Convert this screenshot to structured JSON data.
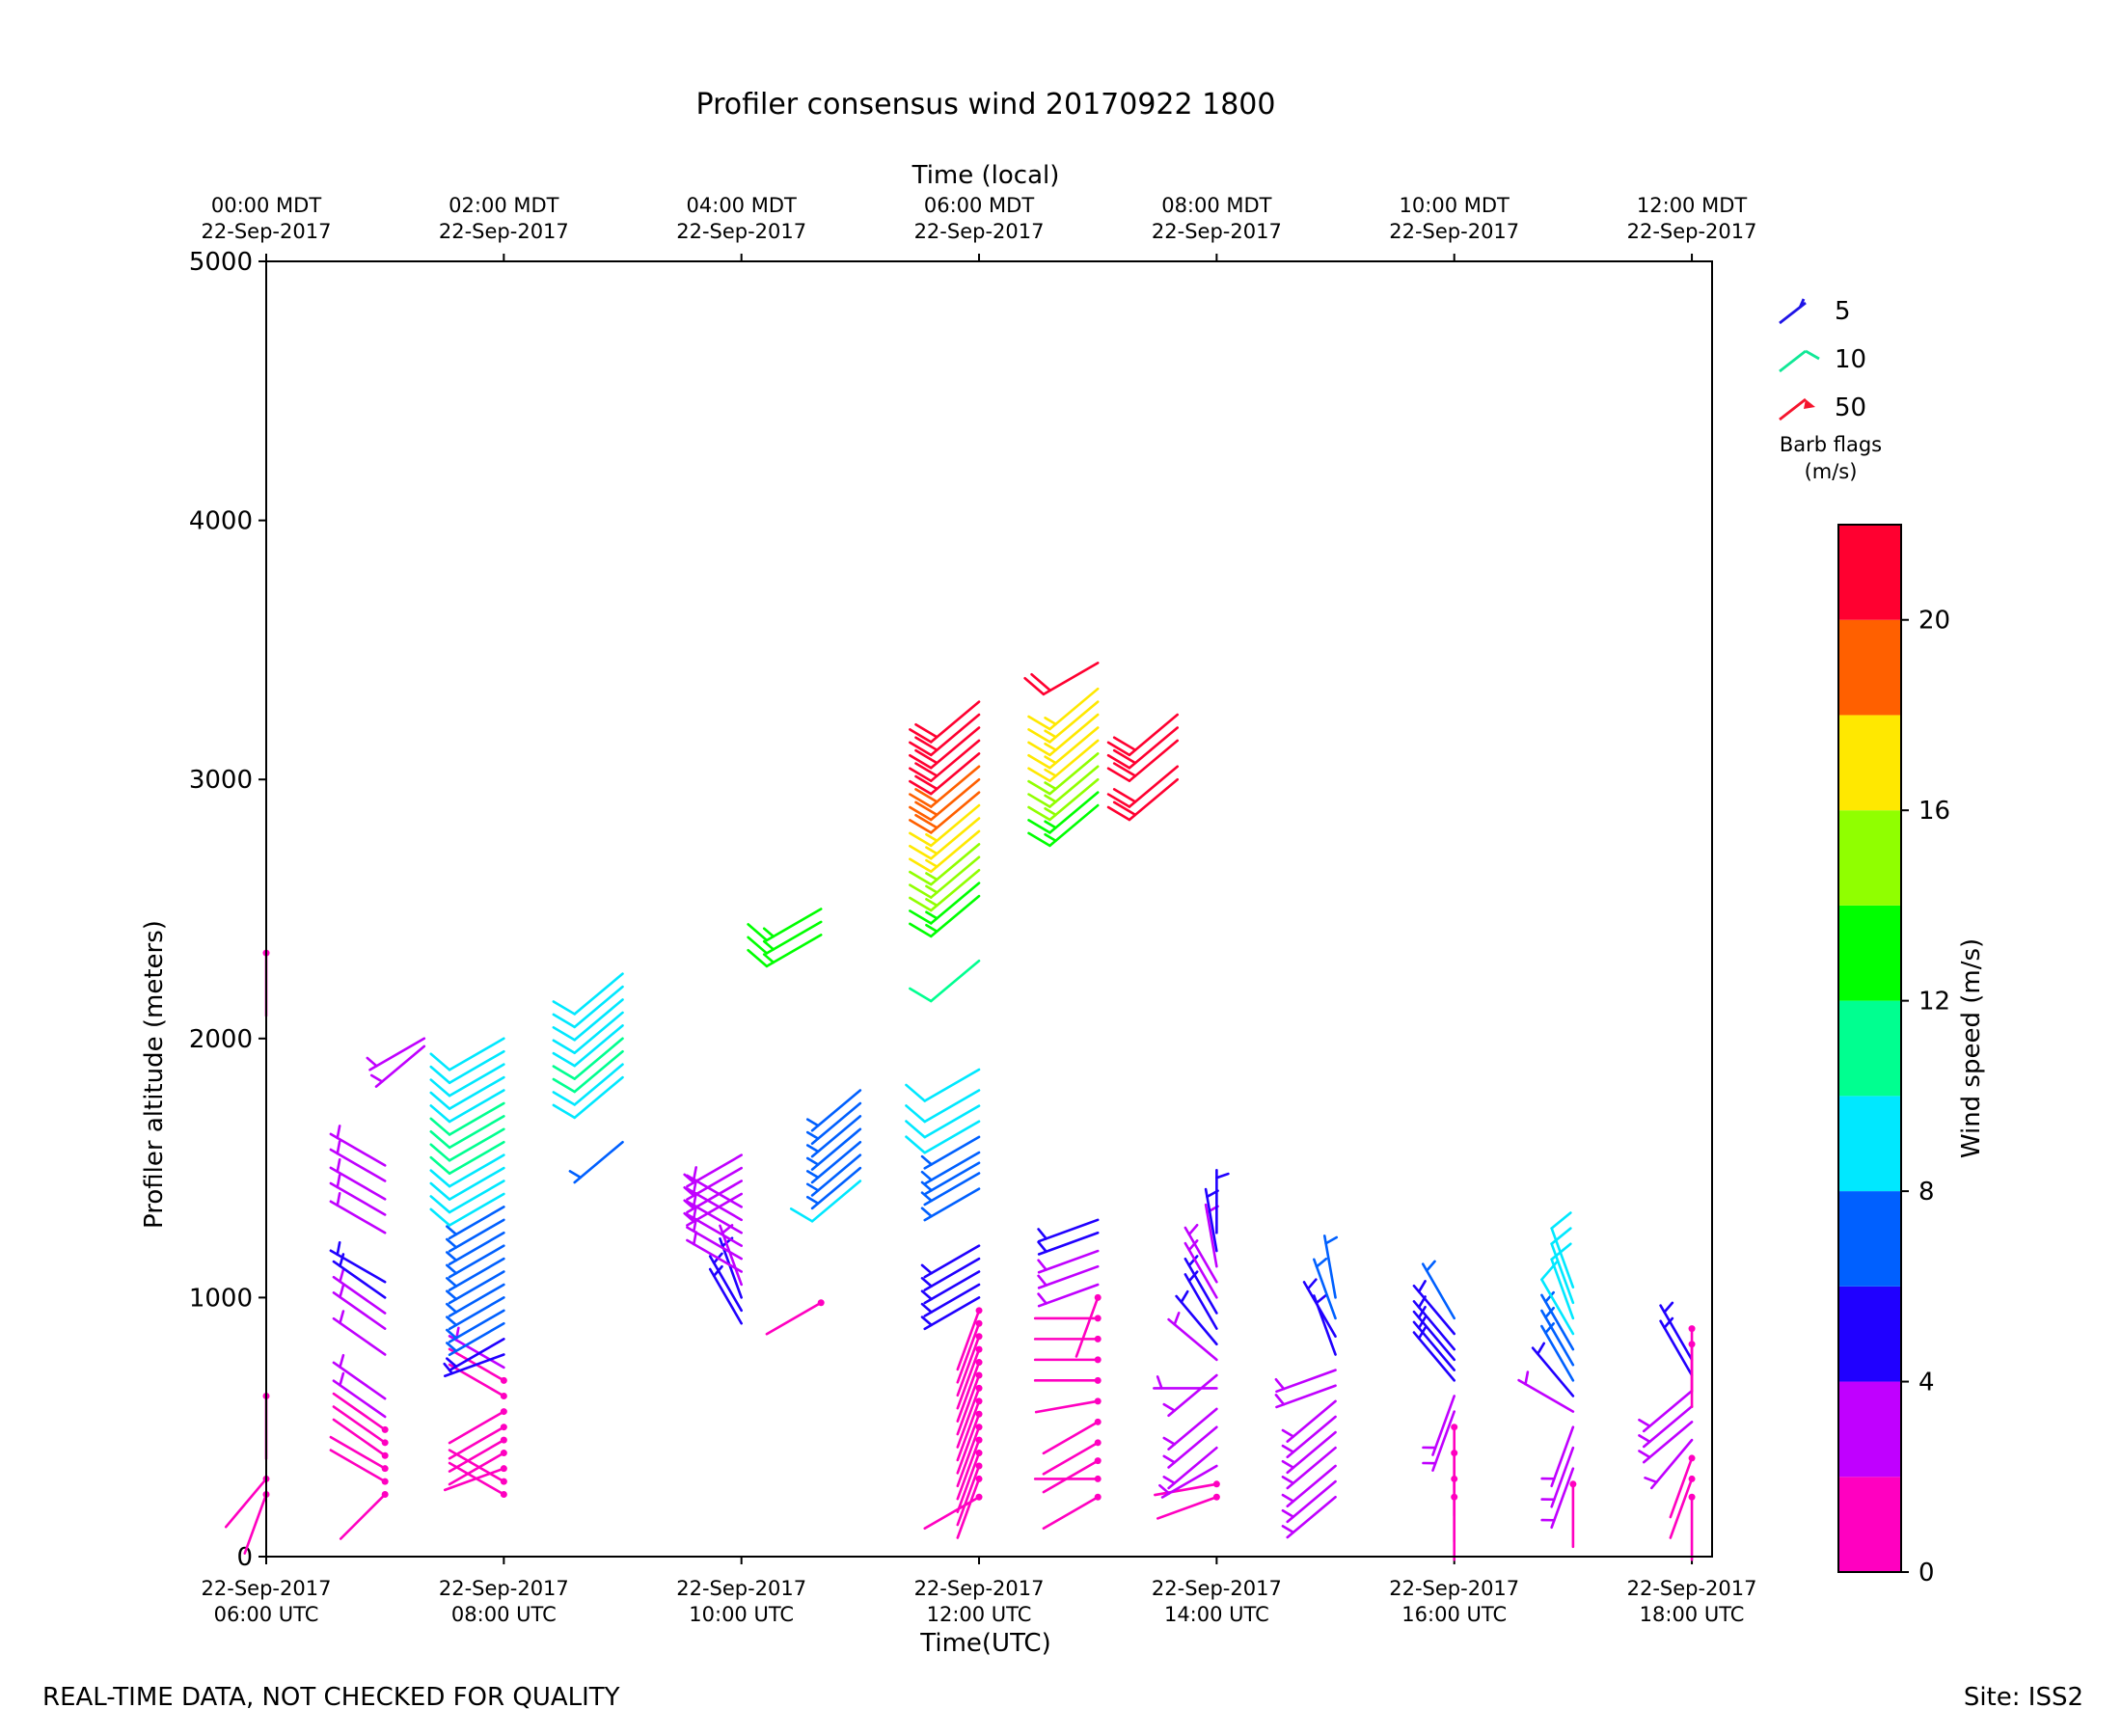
{
  "chart_data": {
    "type": "wind-barb time-height",
    "title": "Profiler consensus wind 20170922 1800",
    "xlabel": "Time(UTC)",
    "xlabel_top": "Time (local)",
    "ylabel": "Profiler altitude (meters)",
    "ylim": [
      0,
      5000
    ],
    "xlim_hours_utc": [
      6.0,
      18.17
    ],
    "y_ticks": [
      "0",
      "1000",
      "2000",
      "3000",
      "4000",
      "5000"
    ],
    "y_tick_values": [
      0,
      1000,
      2000,
      3000,
      4000,
      5000
    ],
    "x_tick_hours": [
      6,
      8,
      10,
      12,
      14,
      16,
      18
    ],
    "x_tick_labels_utc": [
      [
        "22-Sep-2017",
        "06:00 UTC"
      ],
      [
        "22-Sep-2017",
        "08:00 UTC"
      ],
      [
        "22-Sep-2017",
        "10:00 UTC"
      ],
      [
        "22-Sep-2017",
        "12:00 UTC"
      ],
      [
        "22-Sep-2017",
        "14:00 UTC"
      ],
      [
        "22-Sep-2017",
        "16:00 UTC"
      ],
      [
        "22-Sep-2017",
        "18:00 UTC"
      ]
    ],
    "x_tick_labels_local": [
      [
        "00:00 MDT",
        "22-Sep-2017"
      ],
      [
        "02:00 MDT",
        "22-Sep-2017"
      ],
      [
        "04:00 MDT",
        "22-Sep-2017"
      ],
      [
        "06:00 MDT",
        "22-Sep-2017"
      ],
      [
        "08:00 MDT",
        "22-Sep-2017"
      ],
      [
        "10:00 MDT",
        "22-Sep-2017"
      ],
      [
        "12:00 MDT",
        "22-Sep-2017"
      ]
    ],
    "barb_legend": {
      "title": "Barb flags",
      "unit": "(m/s)",
      "entries": [
        {
          "label": "5",
          "color": "#1f14e6"
        },
        {
          "label": "10",
          "color": "#10e896"
        },
        {
          "label": "50",
          "color": "#f5142d"
        }
      ]
    },
    "colorbar": {
      "label": "Wind speed (m/s)",
      "range": [
        0,
        22
      ],
      "ticks": [
        "0",
        "4",
        "8",
        "12",
        "16",
        "20"
      ],
      "tick_values": [
        0,
        4,
        8,
        12,
        16,
        20
      ],
      "bins": [
        {
          "from": 0,
          "to": 2,
          "color": "#ff00c0"
        },
        {
          "from": 2,
          "to": 4,
          "color": "#c000ff"
        },
        {
          "from": 4,
          "to": 6,
          "color": "#2000ff"
        },
        {
          "from": 6,
          "to": 8,
          "color": "#0060ff"
        },
        {
          "from": 8,
          "to": 10,
          "color": "#00e8ff"
        },
        {
          "from": 10,
          "to": 12,
          "color": "#00ff90"
        },
        {
          "from": 12,
          "to": 14,
          "color": "#00ff00"
        },
        {
          "from": 14,
          "to": 16,
          "color": "#90ff00"
        },
        {
          "from": 16,
          "to": 18,
          "color": "#ffe800"
        },
        {
          "from": 18,
          "to": 20,
          "color": "#ff6000"
        },
        {
          "from": 20,
          "to": 22,
          "color": "#ff0030"
        }
      ]
    },
    "series": [
      {
        "name": "06:00 UTC",
        "time": 6.0,
        "altitudes": [
          240,
          300,
          620,
          2330
        ],
        "speeds": [
          1,
          1,
          1,
          1
        ],
        "dirs": [
          200,
          220,
          180,
          180
        ]
      },
      {
        "name": "07:00 UTC",
        "time": 7.0,
        "altitudes": [
          240,
          290,
          340,
          390,
          440,
          490,
          540,
          610,
          780,
          880,
          940,
          1000,
          1060,
          1250,
          1320,
          1380,
          1450,
          1510
        ],
        "speeds": [
          1,
          1,
          1,
          1,
          1,
          1,
          3,
          3,
          3,
          3,
          3,
          5,
          5,
          3,
          3,
          3,
          3,
          3
        ],
        "dirs": [
          225,
          300,
          300,
          305,
          305,
          305,
          305,
          305,
          305,
          305,
          305,
          305,
          300,
          300,
          300,
          300,
          300,
          300
        ]
      },
      {
        "name": "07:20 UTC",
        "time": 7.33,
        "altitudes": [
          1970,
          2000
        ],
        "speeds": [
          3,
          3
        ],
        "dirs": [
          230,
          240
        ]
      },
      {
        "name": "08:00 UTC",
        "time": 8.0,
        "altitudes": [
          240,
          290,
          340,
          400,
          450,
          500,
          560,
          620,
          680,
          730,
          780,
          840,
          900,
          950,
          1000,
          1050,
          1100,
          1150,
          1200,
          1250,
          1300,
          1350,
          1400,
          1450,
          1500,
          1550,
          1600,
          1650,
          1700,
          1750,
          1800,
          1850,
          1900,
          1950,
          2000
        ],
        "speeds": [
          1,
          1,
          1,
          1,
          1,
          1,
          1,
          1,
          1,
          3,
          5,
          5,
          7,
          7,
          7,
          7,
          7,
          7,
          7,
          7,
          7,
          7,
          9,
          9,
          9,
          9,
          11,
          11,
          11,
          11,
          9,
          9,
          9,
          9,
          9
        ],
        "dirs": [
          300,
          300,
          250,
          240,
          240,
          240,
          240,
          300,
          300,
          300,
          250,
          240,
          240,
          240,
          240,
          240,
          240,
          240,
          240,
          240,
          240,
          240,
          240,
          240,
          240,
          240,
          240,
          240,
          240,
          240,
          240,
          240,
          240,
          240,
          240
        ]
      },
      {
        "name": "09:00 UTC",
        "time": 9.0,
        "altitudes": [
          1600,
          1850,
          1900,
          1950,
          2000,
          2050,
          2100,
          2150,
          2200,
          2250
        ],
        "speeds": [
          7,
          9,
          9,
          11,
          11,
          9,
          9,
          9,
          9,
          9
        ],
        "dirs": [
          230,
          230,
          230,
          230,
          230,
          230,
          230,
          230,
          230,
          230
        ]
      },
      {
        "name": "10:00 UTC",
        "time": 10.0,
        "altitudes": [
          900,
          950,
          1000,
          1050,
          1100,
          1150,
          1200,
          1250,
          1300,
          1350,
          1400,
          1450,
          1500,
          1550
        ],
        "speeds": [
          5,
          5,
          5,
          3,
          3,
          3,
          3,
          3,
          3,
          3,
          3,
          3,
          3,
          3
        ],
        "dirs": [
          330,
          330,
          340,
          340,
          300,
          300,
          300,
          300,
          300,
          300,
          240,
          240,
          240,
          240
        ]
      },
      {
        "name": "10:40 UTC",
        "time": 10.67,
        "altitudes": [
          980,
          2400,
          2450,
          2500
        ],
        "speeds": [
          1,
          13,
          13,
          13
        ],
        "dirs": [
          240,
          240,
          240,
          240
        ]
      },
      {
        "name": "11:00 UTC",
        "time": 11.0,
        "altitudes": [
          1450,
          1500,
          1550,
          1600,
          1650,
          1700,
          1750,
          1800
        ],
        "speeds": [
          9,
          7,
          7,
          7,
          7,
          7,
          7,
          7
        ],
        "dirs": [
          230,
          230,
          230,
          230,
          230,
          230,
          230,
          230
        ]
      },
      {
        "name": "12:00 UTC",
        "time": 12.0,
        "altitudes": [
          230,
          300,
          350,
          400,
          450,
          500,
          550,
          600,
          650,
          700,
          750,
          800,
          850,
          900,
          950,
          1000,
          1050,
          1100,
          1150,
          1200,
          1420,
          1480,
          1520,
          1560,
          1620,
          1680,
          1740,
          1800,
          1880,
          2300,
          2550,
          2600,
          2650,
          2700,
          2750,
          2800,
          2850,
          2900,
          2950,
          3000,
          3050,
          3100,
          3150,
          3200,
          3250,
          3300
        ],
        "speeds": [
          1,
          1,
          1,
          1,
          1,
          1,
          1,
          1,
          1,
          1,
          1,
          1,
          1,
          1,
          1,
          5,
          5,
          5,
          5,
          5,
          7,
          7,
          7,
          7,
          7,
          9,
          9,
          9,
          9,
          11,
          13,
          13,
          15,
          15,
          15,
          17,
          17,
          17,
          19,
          19,
          19,
          21,
          21,
          21,
          21,
          21
        ],
        "dirs": [
          240,
          200,
          200,
          200,
          200,
          200,
          200,
          200,
          200,
          200,
          200,
          200,
          200,
          200,
          200,
          240,
          240,
          240,
          240,
          240,
          240,
          240,
          240,
          240,
          240,
          240,
          240,
          240,
          240,
          230,
          230,
          230,
          230,
          230,
          230,
          230,
          230,
          230,
          230,
          230,
          230,
          230,
          230,
          230,
          230,
          230
        ]
      },
      {
        "name": "13:00 UTC",
        "time": 13.0,
        "altitudes": [
          230,
          300,
          370,
          440,
          520,
          600,
          680,
          760,
          840,
          920,
          1000,
          1050,
          1120,
          1180,
          1250,
          1300,
          2900,
          2950,
          3000,
          3050,
          3100,
          3150,
          3200,
          3250,
          3300,
          3350,
          3450
        ],
        "speeds": [
          1,
          1,
          1,
          1,
          1,
          1,
          1,
          1,
          1,
          1,
          1,
          3,
          3,
          3,
          5,
          5,
          13,
          13,
          15,
          15,
          15,
          17,
          17,
          17,
          17,
          17,
          21
        ],
        "dirs": [
          240,
          270,
          240,
          240,
          240,
          260,
          270,
          270,
          270,
          270,
          200,
          250,
          250,
          250,
          250,
          250,
          230,
          230,
          230,
          230,
          230,
          230,
          230,
          230,
          230,
          230,
          240
        ]
      },
      {
        "name": "13:40 UTC",
        "time": 13.67,
        "altitudes": [
          3000,
          3050,
          3150,
          3200,
          3250
        ],
        "speeds": [
          21,
          21,
          21,
          21,
          21
        ],
        "dirs": [
          230,
          230,
          230,
          230,
          230
        ]
      },
      {
        "name": "14:00 UTC",
        "time": 14.0,
        "altitudes": [
          230,
          280,
          350,
          420,
          500,
          570,
          650,
          700,
          760,
          820,
          880,
          940,
          1000,
          1060,
          1120,
          1180,
          1250
        ],
        "speeds": [
          1,
          1,
          3,
          3,
          3,
          3,
          3,
          3,
          3,
          5,
          5,
          5,
          3,
          3,
          3,
          5,
          5
        ],
        "dirs": [
          250,
          260,
          240,
          230,
          230,
          230,
          270,
          230,
          310,
          320,
          330,
          330,
          330,
          330,
          350,
          350,
          0
        ]
      },
      {
        "name": "15:00 UTC",
        "time": 15.0,
        "altitudes": [
          230,
          290,
          350,
          420,
          480,
          540,
          600,
          660,
          720,
          780,
          850,
          920,
          1000
        ],
        "speeds": [
          3,
          3,
          3,
          3,
          3,
          3,
          3,
          3,
          3,
          5,
          5,
          7,
          7
        ],
        "dirs": [
          230,
          230,
          230,
          230,
          230,
          230,
          230,
          250,
          250,
          340,
          330,
          340,
          350
        ]
      },
      {
        "name": "16:00 UTC",
        "time": 16.0,
        "altitudes": [
          230,
          300,
          400,
          500,
          560,
          620,
          680,
          720,
          760,
          800,
          860,
          920
        ],
        "speeds": [
          1,
          1,
          1,
          1,
          3,
          3,
          5,
          5,
          5,
          5,
          5,
          7
        ],
        "dirs": [
          180,
          180,
          180,
          180,
          200,
          200,
          320,
          320,
          320,
          320,
          320,
          330
        ]
      },
      {
        "name": "17:00 UTC",
        "time": 17.0,
        "altitudes": [
          280,
          340,
          420,
          500,
          560,
          620,
          680,
          740,
          800,
          860,
          920,
          980,
          1040
        ],
        "speeds": [
          1,
          3,
          3,
          3,
          3,
          5,
          7,
          7,
          7,
          9,
          9,
          9,
          9
        ],
        "dirs": [
          180,
          200,
          200,
          200,
          300,
          320,
          330,
          330,
          330,
          330,
          340,
          340,
          340
        ]
      },
      {
        "name": "18:00 UTC",
        "time": 18.0,
        "altitudes": [
          230,
          300,
          380,
          450,
          520,
          580,
          640,
          700,
          760,
          820,
          880
        ],
        "speeds": [
          1,
          1,
          1,
          3,
          3,
          3,
          3,
          5,
          5,
          1,
          1
        ],
        "dirs": [
          180,
          200,
          200,
          220,
          230,
          230,
          230,
          330,
          330,
          180,
          180
        ]
      }
    ]
  },
  "footer": {
    "left": "REAL-TIME DATA, NOT CHECKED FOR QUALITY",
    "right": "Site: ISS2"
  }
}
